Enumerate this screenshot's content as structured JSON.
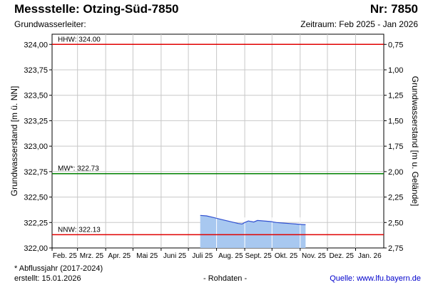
{
  "header": {
    "title": "Messstelle: Otzing-Süd-7850",
    "number": "Nr: 7850",
    "aquifer": "Grundwasserleiter:",
    "period": "Zeitraum: Feb 2025 - Jan 2026"
  },
  "footer": {
    "note": "* Abflussjahr (2017-2024)",
    "created": "erstellt:  15.01.2026",
    "raw": "- Rohdaten -",
    "source": "Quelle: www.lfu.bayern.de"
  },
  "colors": {
    "hhw": "#e00000",
    "nnw": "#e00000",
    "mw": "#008000",
    "fill": "#a8c8f0",
    "line": "#3050d0"
  },
  "chart_data": {
    "type": "area",
    "ylabel_left": "Grundwasserstand [m ü. NN]",
    "ylabel_right": "Grundwasserstand [m u. Gelände]",
    "ylim": [
      322.0,
      324.1
    ],
    "yticks": [
      "324,00",
      "323,75",
      "323,50",
      "323,25",
      "323,00",
      "322,75",
      "322,50",
      "322,25",
      "322,00"
    ],
    "yticks_right": [
      "0,75",
      "1,00",
      "1,25",
      "1,50",
      "1,75",
      "2,00",
      "2,25",
      "2,50",
      "2,75"
    ],
    "xticks": [
      "Feb. 25",
      "Mrz. 25",
      "Apr. 25",
      "Mai 25",
      "Juni 25",
      "Juli 25",
      "Aug. 25",
      "Sept. 25",
      "Okt. 25",
      "Nov. 25",
      "Dez. 25",
      "Jan. 26"
    ],
    "grid": true,
    "reference_lines": [
      {
        "label": "HHW: 324.00",
        "value": 324.0
      },
      {
        "label": "MW*: 322.73",
        "value": 322.73
      },
      {
        "label": "NNW: 322.13",
        "value": 322.13
      }
    ],
    "series": [
      {
        "x": [
          "2025-07-14",
          "2025-07-21",
          "2025-07-28",
          "2025-08-04",
          "2025-08-11",
          "2025-08-18",
          "2025-08-25",
          "2025-08-29",
          "2025-09-01",
          "2025-09-05",
          "2025-09-08",
          "2025-09-11",
          "2025-09-15",
          "2025-09-22",
          "2025-09-29",
          "2025-10-06",
          "2025-10-13",
          "2025-10-20",
          "2025-10-27",
          "2025-11-03",
          "2025-11-07"
        ],
        "values": [
          322.32,
          322.315,
          322.3,
          322.285,
          322.27,
          322.255,
          322.24,
          322.235,
          322.25,
          322.265,
          322.26,
          322.255,
          322.27,
          322.265,
          322.26,
          322.25,
          322.245,
          322.24,
          322.235,
          322.23,
          322.228
        ]
      }
    ]
  }
}
